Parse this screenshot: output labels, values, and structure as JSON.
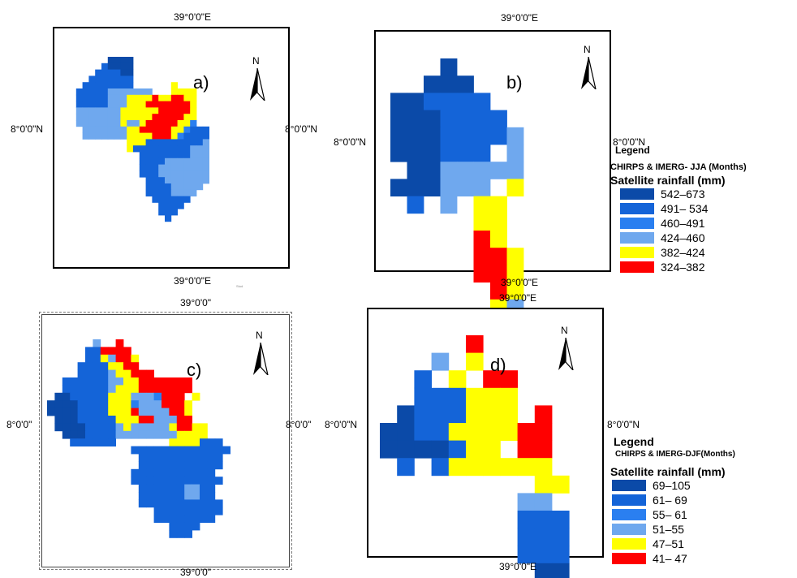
{
  "panels": [
    {
      "letter": "a)",
      "top": "39°0'0\"E",
      "bottom": "39°0'0\"E",
      "left": "8°0'0\"N",
      "right": "8°0'0\"N"
    },
    {
      "letter": "b)",
      "top": "39°0'0\"E",
      "bottom": "39°0'0\"E",
      "left": "8°0'0\"N",
      "right": "8°0'0\"N"
    },
    {
      "letter": "c)",
      "top": "39°0'0\"",
      "bottom": "39°0'0\"",
      "left": "8°0'0\"",
      "right": "8°0'0\""
    },
    {
      "letter": "d)",
      "top": "39°0'0\"E",
      "bottom": "39°0'0\"E",
      "left": "8°0'0\"N",
      "right": "8°0'0\"N"
    }
  ],
  "north_label": "N",
  "tiny_text": "Stud",
  "colors": {
    "c1": "#0b4aa8",
    "c2": "#1464d8",
    "c3": "#2a7ff0",
    "c4": "#6fa8ee",
    "c5": "#ffff00",
    "c6": "#ff0000"
  },
  "legend_jja": {
    "title": "Legend",
    "subtitle": "CHIRPS & IMERG- JJA (Months)",
    "heading": "Satellite rainfall (mm)",
    "items": [
      {
        "label": "542–673",
        "color": "#0b4aa8"
      },
      {
        "label": "491– 534",
        "color": "#1464d8"
      },
      {
        "label": "460–491",
        "color": "#2a7ff0"
      },
      {
        "label": "424–460",
        "color": "#6fa8ee"
      },
      {
        "label": "382–424",
        "color": "#ffff00"
      },
      {
        "label": "324–382",
        "color": "#ff0000"
      }
    ]
  },
  "legend_djf": {
    "title": "Legend",
    "subtitle": "CHIRPS & IMERG-DJF(Months)",
    "heading": "Satellite rainfall (mm)",
    "items": [
      {
        "label": "69–105",
        "color": "#0b4aa8"
      },
      {
        "label": "61– 69",
        "color": "#1464d8"
      },
      {
        "label": "55– 61",
        "color": "#2a7ff0"
      },
      {
        "label": "51–55",
        "color": "#6fa8ee"
      },
      {
        "label": "47–51",
        "color": "#ffff00"
      },
      {
        "label": "41– 47",
        "color": "#ff0000"
      }
    ]
  }
}
